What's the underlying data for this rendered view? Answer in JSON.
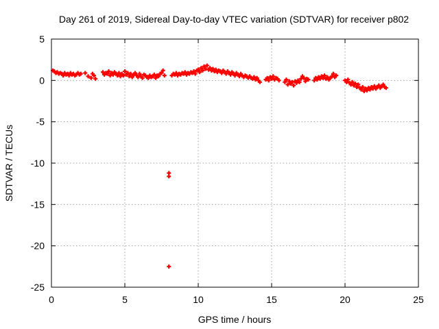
{
  "chart_data": {
    "type": "scatter",
    "title": "Day 261 of 2019, Sidereal Day-to-day VTEC variation (SDTVAR) for receiver p802",
    "xlabel": "GPS time / hours",
    "ylabel": "SDTVAR / TECUs",
    "xlim": [
      0,
      25
    ],
    "ylim": [
      -25,
      5
    ],
    "xticks": [
      0,
      5,
      10,
      15,
      20,
      25
    ],
    "yticks": [
      5,
      0,
      -5,
      -10,
      -15,
      -20,
      -25
    ],
    "grid": true,
    "marker": "plus",
    "series_color": "#ff0000",
    "series": [
      {
        "name": "SDTVAR",
        "x": [
          0.1,
          0.2,
          0.3,
          0.4,
          0.5,
          0.6,
          0.7,
          0.8,
          0.9,
          1.0,
          1.1,
          1.2,
          1.3,
          1.4,
          1.5,
          1.6,
          1.7,
          1.8,
          1.9,
          2.0,
          2.3,
          2.5,
          2.7,
          2.8,
          2.9,
          3.0,
          3.5,
          3.6,
          3.7,
          3.8,
          3.9,
          4.0,
          4.1,
          4.2,
          4.3,
          4.4,
          4.5,
          4.6,
          4.7,
          4.8,
          4.9,
          5.0,
          5.1,
          5.2,
          5.3,
          5.4,
          5.5,
          5.6,
          5.7,
          5.8,
          5.9,
          6.0,
          6.1,
          6.2,
          6.3,
          6.4,
          6.5,
          6.6,
          6.7,
          6.8,
          6.9,
          7.0,
          7.1,
          7.2,
          7.3,
          7.4,
          7.5,
          7.6,
          7.7,
          8.2,
          8.3,
          8.4,
          8.5,
          8.6,
          8.7,
          8.8,
          8.9,
          9.0,
          9.1,
          9.2,
          9.3,
          9.4,
          9.5,
          9.6,
          9.7,
          9.8,
          9.9,
          10.0,
          10.1,
          10.2,
          10.3,
          10.4,
          10.5,
          10.6,
          10.7,
          10.8,
          10.9,
          11.0,
          11.1,
          11.2,
          11.3,
          11.4,
          11.5,
          11.6,
          11.7,
          11.8,
          11.9,
          12.0,
          12.1,
          12.2,
          12.3,
          12.4,
          12.5,
          12.6,
          12.7,
          12.8,
          12.9,
          13.0,
          13.1,
          13.2,
          13.3,
          13.4,
          13.5,
          13.6,
          13.7,
          13.8,
          13.9,
          14.0,
          14.1,
          14.2,
          14.6,
          14.7,
          14.8,
          14.9,
          15.0,
          15.1,
          15.2,
          15.3,
          15.4,
          15.5,
          15.9,
          16.0,
          16.1,
          16.2,
          16.3,
          16.4,
          16.5,
          16.6,
          16.7,
          16.8,
          16.9,
          17.0,
          17.1,
          17.2,
          17.3,
          17.4,
          17.5,
          17.9,
          18.0,
          18.1,
          18.2,
          18.3,
          18.4,
          18.5,
          18.6,
          18.7,
          18.8,
          18.9,
          19.0,
          19.1,
          19.2,
          19.3,
          19.4,
          20.0,
          20.1,
          20.2,
          20.3,
          20.4,
          20.5,
          20.6,
          20.7,
          20.8,
          20.9,
          21.0,
          21.1,
          21.2,
          21.3,
          21.4,
          21.5,
          21.6,
          21.7,
          21.8,
          21.9,
          22.0,
          22.1,
          22.2,
          22.3,
          22.4,
          22.5,
          22.6,
          22.7,
          22.8,
          8.0,
          8.0,
          8.0
        ],
        "y": [
          1.2,
          1.1,
          0.9,
          1.0,
          0.8,
          0.9,
          0.8,
          0.6,
          0.9,
          0.7,
          0.8,
          0.6,
          0.9,
          0.7,
          0.8,
          0.6,
          0.7,
          0.9,
          0.7,
          0.8,
          0.9,
          0.5,
          0.3,
          0.8,
          0.6,
          0.2,
          1.0,
          0.7,
          0.9,
          0.8,
          1.1,
          0.6,
          0.9,
          0.7,
          1.0,
          0.8,
          0.6,
          0.9,
          0.5,
          0.8,
          0.6,
          1.1,
          0.7,
          0.9,
          0.5,
          0.8,
          0.4,
          0.7,
          0.9,
          0.6,
          0.4,
          0.8,
          0.5,
          0.3,
          0.7,
          0.6,
          0.4,
          0.3,
          0.6,
          0.4,
          0.5,
          0.7,
          0.3,
          0.6,
          0.5,
          0.8,
          0.9,
          1.2,
          0.6,
          0.6,
          0.8,
          0.7,
          0.9,
          0.6,
          0.8,
          0.7,
          0.9,
          0.8,
          1.0,
          0.7,
          0.9,
          0.8,
          1.0,
          0.9,
          1.1,
          0.8,
          1.2,
          1.3,
          1.0,
          1.5,
          1.2,
          1.7,
          1.4,
          1.8,
          1.3,
          1.5,
          1.2,
          1.4,
          1.1,
          1.3,
          1.0,
          1.2,
          1.1,
          0.9,
          1.2,
          1.0,
          0.8,
          1.1,
          0.9,
          0.7,
          1.0,
          0.8,
          0.6,
          0.9,
          0.7,
          0.5,
          0.8,
          0.6,
          0.4,
          0.6,
          0.5,
          0.3,
          0.5,
          0.3,
          0.2,
          0.4,
          0.1,
          0.3,
          0.0,
          -0.2,
          0.1,
          0.3,
          0.0,
          0.4,
          0.2,
          0.5,
          0.1,
          0.3,
          0.2,
          0.0,
          -0.2,
          0.1,
          -0.5,
          -0.1,
          -0.4,
          -0.2,
          -0.6,
          -0.1,
          -0.3,
          0.0,
          -0.2,
          0.2,
          0.5,
          0.3,
          -0.1,
          0.2,
          0.1,
          0.0,
          0.3,
          0.1,
          0.4,
          0.2,
          0.5,
          0.3,
          0.6,
          0.2,
          0.4,
          0.1,
          0.3,
          0.5,
          0.8,
          0.4,
          0.6,
          0.0,
          -0.2,
          0.1,
          -0.3,
          -0.5,
          -0.2,
          -0.6,
          -0.4,
          -0.8,
          -0.5,
          -0.9,
          -1.1,
          -0.8,
          -1.3,
          -1.0,
          -1.2,
          -0.9,
          -1.1,
          -0.8,
          -1.0,
          -0.7,
          -1.0,
          -0.8,
          -0.6,
          -0.9,
          -0.7,
          -0.5,
          -0.8,
          -0.9,
          -11.2,
          -11.6,
          -22.5
        ]
      }
    ]
  }
}
